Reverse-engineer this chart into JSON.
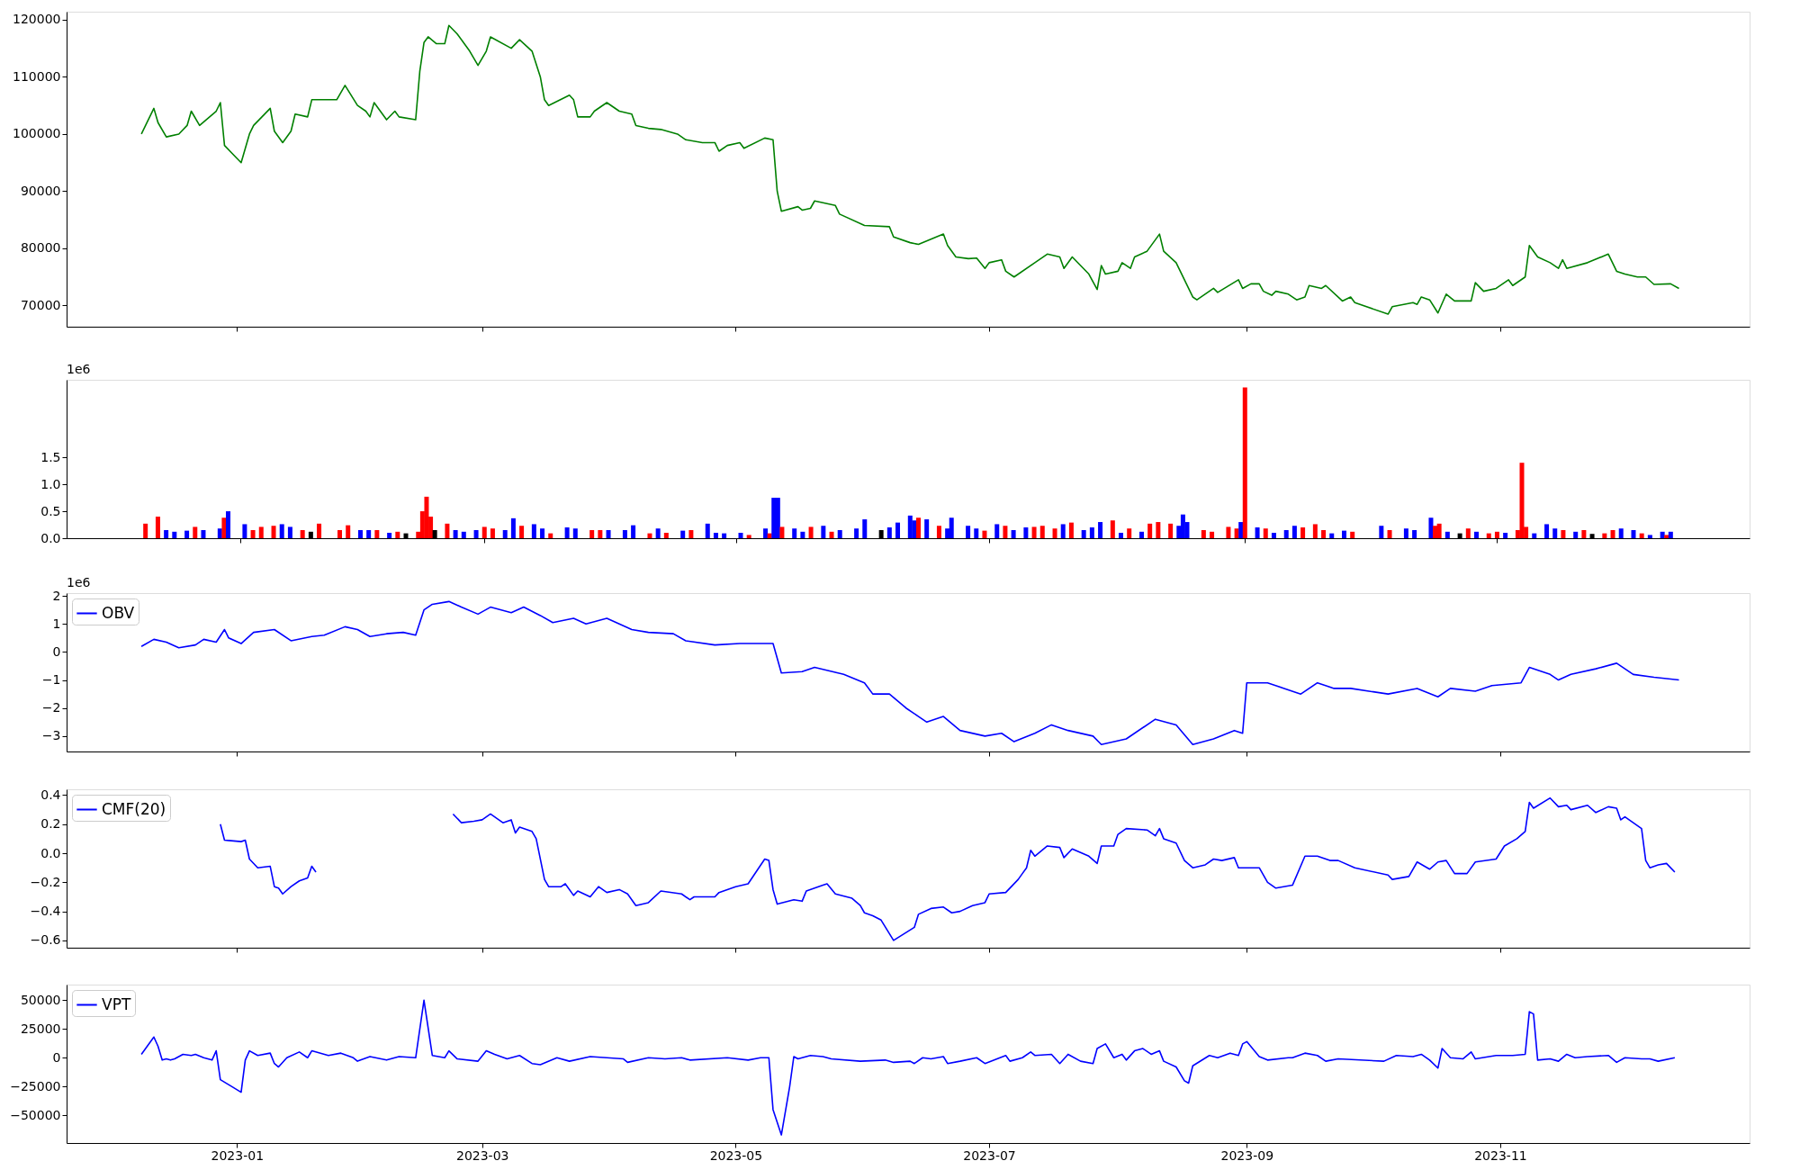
{
  "chart_data": [
    {
      "type": "line",
      "tick_labels": "y",
      "grid": false,
      "xlim": [
        "2022-11-21",
        "2023-12-31"
      ],
      "xticks": [
        "2023-01",
        "2023-03",
        "2023-05",
        "2023-07",
        "2023-09",
        "2023-11"
      ],
      "ylim": [
        66300,
        121400
      ],
      "yticks": [
        70000,
        80000,
        90000,
        100000,
        110000,
        120000
      ],
      "x": [
        "2022-12-09",
        "2022-12-12",
        "2022-12-13",
        "2022-12-15",
        "2022-12-18",
        "2022-12-20",
        "2022-12-21",
        "2022-12-23",
        "2022-12-27",
        "2022-12-28",
        "2022-12-29",
        "2023-01-02",
        "2023-01-04",
        "2023-01-05",
        "2023-01-09",
        "2023-01-10",
        "2023-01-12",
        "2023-01-14",
        "2023-01-15",
        "2023-01-18",
        "2023-01-19",
        "2023-01-25",
        "2023-01-27",
        "2023-01-30",
        "2023-02-01",
        "2023-02-02",
        "2023-02-03",
        "2023-02-06",
        "2023-02-08",
        "2023-02-09",
        "2023-02-13",
        "2023-02-14",
        "2023-02-15",
        "2023-02-16",
        "2023-02-18",
        "2023-02-20",
        "2023-02-21",
        "2023-02-23",
        "2023-02-26",
        "2023-02-28",
        "2023-03-02",
        "2023-03-03",
        "2023-03-08",
        "2023-03-10",
        "2023-03-13",
        "2023-03-15",
        "2023-03-16",
        "2023-03-17",
        "2023-03-22",
        "2023-03-23",
        "2023-03-24",
        "2023-03-27",
        "2023-03-28",
        "2023-03-31",
        "2023-04-03",
        "2023-04-06",
        "2023-04-07",
        "2023-04-10",
        "2023-04-13",
        "2023-04-17",
        "2023-04-19",
        "2023-04-23",
        "2023-04-26",
        "2023-04-27",
        "2023-04-29",
        "2023-05-02",
        "2023-05-03",
        "2023-05-08",
        "2023-05-10",
        "2023-05-11",
        "2023-05-12",
        "2023-05-16",
        "2023-05-17",
        "2023-05-19",
        "2023-05-20",
        "2023-05-25",
        "2023-05-26",
        "2023-06-01",
        "2023-06-07",
        "2023-06-08",
        "2023-06-12",
        "2023-06-14",
        "2023-06-20",
        "2023-06-21",
        "2023-06-23",
        "2023-06-26",
        "2023-06-28",
        "2023-06-30",
        "2023-07-01",
        "2023-07-04",
        "2023-07-05",
        "2023-07-07",
        "2023-07-12",
        "2023-07-15",
        "2023-07-18",
        "2023-07-19",
        "2023-07-21",
        "2023-07-25",
        "2023-07-27",
        "2023-07-28",
        "2023-07-29",
        "2023-08-01",
        "2023-08-02",
        "2023-08-04",
        "2023-08-05",
        "2023-08-08",
        "2023-08-11",
        "2023-08-12",
        "2023-08-15",
        "2023-08-19",
        "2023-08-20",
        "2023-08-24",
        "2023-08-25",
        "2023-08-30",
        "2023-08-31",
        "2023-09-02",
        "2023-09-04",
        "2023-09-05",
        "2023-09-07",
        "2023-09-08",
        "2023-09-11",
        "2023-09-13",
        "2023-09-15",
        "2023-09-16",
        "2023-09-19",
        "2023-09-20",
        "2023-09-24",
        "2023-09-26",
        "2023-09-27",
        "2023-10-05",
        "2023-10-06",
        "2023-10-11",
        "2023-10-12",
        "2023-10-13",
        "2023-10-15",
        "2023-10-17",
        "2023-10-19",
        "2023-10-21",
        "2023-10-25",
        "2023-10-26",
        "2023-10-28",
        "2023-10-31",
        "2023-11-03",
        "2023-11-04",
        "2023-11-07",
        "2023-11-08",
        "2023-11-10",
        "2023-11-13",
        "2023-11-15",
        "2023-11-16",
        "2023-11-17",
        "2023-11-22",
        "2023-11-27",
        "2023-11-29",
        "2023-12-01",
        "2023-12-04",
        "2023-12-06",
        "2023-12-08",
        "2023-12-12",
        "2023-12-14"
      ],
      "series": [
        {
          "color": "#008000",
          "values": [
            100000,
            104500,
            102000,
            99500,
            100000,
            101500,
            104000,
            101500,
            104000,
            105500,
            98000,
            95000,
            100000,
            101500,
            104500,
            100500,
            98500,
            100500,
            103500,
            103000,
            106000,
            106000,
            108500,
            105000,
            104000,
            103000,
            105500,
            102500,
            104000,
            103000,
            102500,
            111000,
            116000,
            117000,
            115800,
            115800,
            119000,
            117500,
            114500,
            112000,
            114500,
            117000,
            115000,
            116500,
            114500,
            110000,
            106000,
            105000,
            106800,
            106000,
            103000,
            103000,
            104000,
            105500,
            104000,
            103500,
            101500,
            101000,
            100800,
            100000,
            99000,
            98500,
            98500,
            97000,
            98000,
            98500,
            97500,
            99300,
            99000,
            90000,
            86500,
            87300,
            86700,
            87000,
            88300,
            87500,
            86000,
            84000,
            83800,
            82000,
            81000,
            80700,
            82500,
            80500,
            78500,
            78200,
            78300,
            76500,
            77500,
            78000,
            76000,
            75000,
            77500,
            79000,
            78500,
            76500,
            78500,
            75500,
            72800,
            77000,
            75500,
            76000,
            77500,
            76500,
            78500,
            79500,
            82500,
            79500,
            77500,
            71500,
            71000,
            73000,
            72300,
            74500,
            73000,
            73800,
            73800,
            72500,
            71800,
            72500,
            72000,
            71000,
            71500,
            73500,
            73000,
            73500,
            70800,
            71500,
            70500,
            68500,
            69800,
            70500,
            70200,
            71500,
            71000,
            68700,
            72000,
            70800,
            70800,
            74000,
            72500,
            73000,
            74500,
            73500,
            75000,
            80500,
            78500,
            77500,
            76500,
            78000,
            76500,
            77500,
            79000,
            76000,
            75500,
            75000,
            75000,
            73700,
            73800,
            73000
          ]
        }
      ]
    },
    {
      "type": "bar",
      "tick_labels": "y",
      "grid": false,
      "annotations": [
        "1e6"
      ],
      "xlim": [
        "2022-11-21",
        "2023-12-31"
      ],
      "xticks": [
        "2023-01",
        "2023-03",
        "2023-05",
        "2023-07",
        "2023-09",
        "2023-11"
      ],
      "ylim": [
        0,
        2.94
      ],
      "yticks": [
        {
          "value": 0,
          "label": "0.0"
        },
        0.5,
        {
          "value": 1,
          "label": "1.0"
        },
        1.5
      ],
      "x": [
        "2022-12-09",
        "2022-12-12",
        "2022-12-14",
        "2022-12-16",
        "2022-12-19",
        "2022-12-21",
        "2022-12-23",
        "2022-12-27",
        "2022-12-28",
        "2022-12-29",
        "2023-01-02",
        "2023-01-04",
        "2023-01-06",
        "2023-01-09",
        "2023-01-11",
        "2023-01-13",
        "2023-01-16",
        "2023-01-18",
        "2023-01-20",
        "2023-01-25",
        "2023-01-27",
        "2023-01-30",
        "2023-02-01",
        "2023-02-03",
        "2023-02-06",
        "2023-02-08",
        "2023-02-10",
        "2023-02-13",
        "2023-02-14",
        "2023-02-15",
        "2023-02-16",
        "2023-02-17",
        "2023-02-20",
        "2023-02-22",
        "2023-02-24",
        "2023-02-27",
        "2023-03-01",
        "2023-03-03",
        "2023-03-06",
        "2023-03-08",
        "2023-03-10",
        "2023-03-13",
        "2023-03-15",
        "2023-03-17",
        "2023-03-21",
        "2023-03-23",
        "2023-03-27",
        "2023-03-29",
        "2023-03-31",
        "2023-04-04",
        "2023-04-06",
        "2023-04-10",
        "2023-04-12",
        "2023-04-14",
        "2023-04-18",
        "2023-04-20",
        "2023-04-24",
        "2023-04-26",
        "2023-04-28",
        "2023-05-02",
        "2023-05-04",
        "2023-05-08",
        "2023-05-09",
        "2023-05-10",
        "2023-05-11",
        "2023-05-12",
        "2023-05-15",
        "2023-05-17",
        "2023-05-19",
        "2023-05-22",
        "2023-05-24",
        "2023-05-26",
        "2023-05-30",
        "2023-06-01",
        "2023-06-05",
        "2023-06-07",
        "2023-06-09",
        "2023-06-12",
        "2023-06-13",
        "2023-06-14",
        "2023-06-16",
        "2023-06-19",
        "2023-06-21",
        "2023-06-22",
        "2023-06-26",
        "2023-06-28",
        "2023-06-30",
        "2023-07-03",
        "2023-07-05",
        "2023-07-07",
        "2023-07-10",
        "2023-07-12",
        "2023-07-14",
        "2023-07-17",
        "2023-07-19",
        "2023-07-21",
        "2023-07-24",
        "2023-07-26",
        "2023-07-28",
        "2023-07-31",
        "2023-08-02",
        "2023-08-04",
        "2023-08-07",
        "2023-08-09",
        "2023-08-11",
        "2023-08-14",
        "2023-08-16",
        "2023-08-17",
        "2023-08-18",
        "2023-08-22",
        "2023-08-24",
        "2023-08-28",
        "2023-08-30",
        "2023-08-31",
        "2023-09-01",
        "2023-09-04",
        "2023-09-06",
        "2023-09-08",
        "2023-09-11",
        "2023-09-13",
        "2023-09-15",
        "2023-09-18",
        "2023-09-20",
        "2023-09-22",
        "2023-09-25",
        "2023-09-27",
        "2023-10-04",
        "2023-10-06",
        "2023-10-10",
        "2023-10-12",
        "2023-10-16",
        "2023-10-17",
        "2023-10-18",
        "2023-10-20",
        "2023-10-23",
        "2023-10-25",
        "2023-10-27",
        "2023-10-30",
        "2023-11-01",
        "2023-11-03",
        "2023-11-06",
        "2023-11-07",
        "2023-11-08",
        "2023-11-10",
        "2023-11-13",
        "2023-11-15",
        "2023-11-17",
        "2023-11-20",
        "2023-11-22",
        "2023-11-24",
        "2023-11-27",
        "2023-11-29",
        "2023-12-01",
        "2023-12-04",
        "2023-12-06",
        "2023-12-08",
        "2023-12-11",
        "2023-12-12",
        "2023-12-13"
      ],
      "values": [
        0.27,
        0.4,
        0.15,
        0.12,
        0.14,
        0.21,
        0.15,
        0.18,
        0.38,
        0.5,
        0.26,
        0.15,
        0.21,
        0.23,
        0.26,
        0.21,
        0.15,
        0.12,
        0.27,
        0.15,
        0.24,
        0.15,
        0.15,
        0.15,
        0.1,
        0.12,
        0.09,
        0.12,
        0.5,
        0.77,
        0.4,
        0.15,
        0.27,
        0.15,
        0.12,
        0.15,
        0.21,
        0.18,
        0.15,
        0.37,
        0.23,
        0.26,
        0.18,
        0.09,
        0.2,
        0.18,
        0.15,
        0.15,
        0.15,
        0.15,
        0.24,
        0.09,
        0.18,
        0.1,
        0.14,
        0.15,
        0.27,
        0.1,
        0.09,
        0.1,
        0.06,
        0.18,
        0.09,
        0.75,
        0.75,
        0.21,
        0.18,
        0.12,
        0.21,
        0.23,
        0.12,
        0.15,
        0.18,
        0.35,
        0.15,
        0.2,
        0.29,
        0.42,
        0.33,
        0.38,
        0.35,
        0.23,
        0.18,
        0.38,
        0.23,
        0.18,
        0.14,
        0.26,
        0.23,
        0.15,
        0.2,
        0.21,
        0.23,
        0.18,
        0.26,
        0.29,
        0.15,
        0.2,
        0.3,
        0.33,
        0.1,
        0.18,
        0.12,
        0.27,
        0.3,
        0.27,
        0.23,
        0.44,
        0.3,
        0.15,
        0.12,
        0.21,
        0.18,
        0.3,
        2.8,
        0.2,
        0.18,
        0.1,
        0.15,
        0.23,
        0.2,
        0.26,
        0.15,
        0.09,
        0.14,
        0.12,
        0.23,
        0.15,
        0.18,
        0.15,
        0.38,
        0.23,
        0.27,
        0.12,
        0.09,
        0.18,
        0.12,
        0.09,
        0.12,
        0.1,
        0.15,
        1.4,
        0.21,
        0.09,
        0.26,
        0.18,
        0.15,
        0.12,
        0.15,
        0.08,
        0.09,
        0.15,
        0.18,
        0.15,
        0.09,
        0.06,
        0.12,
        0.06,
        0.12
      ],
      "colors": [
        "#ff0000",
        "#ff0000",
        "#0000ff",
        "#0000ff",
        "#0000ff",
        "#ff0000",
        "#0000ff",
        "#0000ff",
        "#ff0000",
        "#0000ff",
        "#0000ff",
        "#ff0000",
        "#ff0000",
        "#ff0000",
        "#0000ff",
        "#0000ff",
        "#ff0000",
        "#000000",
        "#ff0000",
        "#ff0000",
        "#ff0000",
        "#0000ff",
        "#0000ff",
        "#ff0000",
        "#0000ff",
        "#ff0000",
        "#000000",
        "#ff0000",
        "#ff0000",
        "#ff0000",
        "#ff0000",
        "#000000",
        "#ff0000",
        "#0000ff",
        "#0000ff",
        "#0000ff",
        "#ff0000",
        "#ff0000",
        "#0000ff",
        "#0000ff",
        "#ff0000",
        "#0000ff",
        "#0000ff",
        "#ff0000",
        "#0000ff",
        "#0000ff",
        "#ff0000",
        "#ff0000",
        "#0000ff",
        "#0000ff",
        "#0000ff",
        "#ff0000",
        "#0000ff",
        "#ff0000",
        "#0000ff",
        "#ff0000",
        "#0000ff",
        "#0000ff",
        "#0000ff",
        "#0000ff",
        "#ff0000",
        "#0000ff",
        "#ff0000",
        "#0000ff",
        "#0000ff",
        "#ff0000",
        "#0000ff",
        "#0000ff",
        "#ff0000",
        "#0000ff",
        "#ff0000",
        "#0000ff",
        "#0000ff",
        "#0000ff",
        "#000000",
        "#0000ff",
        "#0000ff",
        "#0000ff",
        "#0000ff",
        "#ff0000",
        "#0000ff",
        "#ff0000",
        "#0000ff",
        "#0000ff",
        "#0000ff",
        "#0000ff",
        "#ff0000",
        "#0000ff",
        "#ff0000",
        "#0000ff",
        "#0000ff",
        "#ff0000",
        "#ff0000",
        "#ff0000",
        "#0000ff",
        "#ff0000",
        "#0000ff",
        "#0000ff",
        "#0000ff",
        "#ff0000",
        "#0000ff",
        "#ff0000",
        "#0000ff",
        "#ff0000",
        "#ff0000",
        "#ff0000",
        "#0000ff",
        "#0000ff",
        "#0000ff",
        "#ff0000",
        "#ff0000",
        "#ff0000",
        "#ff0000",
        "#0000ff",
        "#ff0000",
        "#0000ff",
        "#ff0000",
        "#0000ff",
        "#0000ff",
        "#0000ff",
        "#ff0000",
        "#ff0000",
        "#ff0000",
        "#0000ff",
        "#0000ff",
        "#ff0000",
        "#0000ff",
        "#ff0000",
        "#0000ff",
        "#0000ff",
        "#0000ff",
        "#ff0000",
        "#ff0000",
        "#0000ff",
        "#000000",
        "#ff0000",
        "#0000ff",
        "#ff0000",
        "#ff0000",
        "#0000ff",
        "#ff0000",
        "#ff0000",
        "#ff0000",
        "#0000ff",
        "#0000ff",
        "#0000ff",
        "#ff0000",
        "#0000ff",
        "#ff0000",
        "#000000",
        "#ff0000",
        "#ff0000",
        "#0000ff",
        "#0000ff",
        "#ff0000",
        "#0000ff",
        "#0000ff",
        "#ff0000",
        "#0000ff"
      ]
    },
    {
      "type": "line",
      "tick_labels": "y",
      "legend": "top left",
      "grid": false,
      "annotations": [
        "1e6"
      ],
      "xlim": [
        "2022-11-21",
        "2023-12-31"
      ],
      "xticks": [
        "2023-01",
        "2023-03",
        "2023-05",
        "2023-07",
        "2023-09",
        "2023-11"
      ],
      "ylim": [
        -3.55,
        2.1
      ],
      "yticks": [
        {
          "value": -3,
          "label": "−3"
        },
        {
          "value": -2,
          "label": "−2"
        },
        {
          "value": -1,
          "label": "−1"
        },
        0,
        1,
        2
      ],
      "x": [
        "2022-12-09",
        "2022-12-12",
        "2022-12-15",
        "2022-12-18",
        "2022-12-22",
        "2022-12-24",
        "2022-12-27",
        "2022-12-29",
        "2022-12-30",
        "2023-01-02",
        "2023-01-05",
        "2023-01-10",
        "2023-01-14",
        "2023-01-19",
        "2023-01-22",
        "2023-01-27",
        "2023-01-30",
        "2023-02-02",
        "2023-02-06",
        "2023-02-10",
        "2023-02-13",
        "2023-02-15",
        "2023-02-17",
        "2023-02-21",
        "2023-02-24",
        "2023-02-28",
        "2023-03-03",
        "2023-03-08",
        "2023-03-11",
        "2023-03-15",
        "2023-03-18",
        "2023-03-23",
        "2023-03-26",
        "2023-03-31",
        "2023-04-06",
        "2023-04-10",
        "2023-04-16",
        "2023-04-19",
        "2023-04-26",
        "2023-05-02",
        "2023-05-10",
        "2023-05-12",
        "2023-05-17",
        "2023-05-20",
        "2023-05-27",
        "2023-06-01",
        "2023-06-03",
        "2023-06-07",
        "2023-06-11",
        "2023-06-14",
        "2023-06-16",
        "2023-06-20",
        "2023-06-24",
        "2023-06-30",
        "2023-07-04",
        "2023-07-07",
        "2023-07-12",
        "2023-07-16",
        "2023-07-20",
        "2023-07-26",
        "2023-07-28",
        "2023-08-03",
        "2023-08-10",
        "2023-08-15",
        "2023-08-19",
        "2023-08-24",
        "2023-08-29",
        "2023-08-31",
        "2023-09-01",
        "2023-09-06",
        "2023-09-10",
        "2023-09-14",
        "2023-09-18",
        "2023-09-22",
        "2023-09-26",
        "2023-10-05",
        "2023-10-12",
        "2023-10-17",
        "2023-10-20",
        "2023-10-26",
        "2023-10-30",
        "2023-11-06",
        "2023-11-08",
        "2023-11-13",
        "2023-11-15",
        "2023-11-18",
        "2023-11-24",
        "2023-11-29",
        "2023-12-03",
        "2023-12-08",
        "2023-12-14"
      ],
      "series": [
        {
          "name": "OBV",
          "color": "#0000ff",
          "values": [
            0.2,
            0.45,
            0.35,
            0.15,
            0.25,
            0.45,
            0.35,
            0.8,
            0.5,
            0.3,
            0.7,
            0.8,
            0.4,
            0.55,
            0.6,
            0.9,
            0.8,
            0.55,
            0.65,
            0.7,
            0.6,
            1.5,
            1.7,
            1.8,
            1.6,
            1.35,
            1.6,
            1.4,
            1.6,
            1.3,
            1.05,
            1.2,
            1.0,
            1.2,
            0.8,
            0.7,
            0.65,
            0.4,
            0.25,
            0.3,
            0.3,
            -0.75,
            -0.7,
            -0.55,
            -0.8,
            -1.1,
            -1.5,
            -1.5,
            -2.0,
            -2.3,
            -2.5,
            -2.3,
            -2.8,
            -3.0,
            -2.9,
            -3.2,
            -2.9,
            -2.6,
            -2.8,
            -3.0,
            -3.3,
            -3.1,
            -2.4,
            -2.6,
            -3.3,
            -3.1,
            -2.8,
            -2.9,
            -1.1,
            -1.1,
            -1.3,
            -1.5,
            -1.1,
            -1.3,
            -1.3,
            -1.5,
            -1.3,
            -1.6,
            -1.3,
            -1.4,
            -1.2,
            -1.1,
            -0.55,
            -0.8,
            -1.0,
            -0.8,
            -0.6,
            -0.4,
            -0.8,
            -0.9,
            -1.0
          ]
        }
      ]
    },
    {
      "type": "line",
      "tick_labels": "y",
      "legend": "top left",
      "grid": false,
      "xlim": [
        "2022-11-21",
        "2023-12-31"
      ],
      "xticks": [
        "2023-01",
        "2023-03",
        "2023-05",
        "2023-07",
        "2023-09",
        "2023-11"
      ],
      "ylim": [
        -0.65,
        0.44
      ],
      "yticks": [
        {
          "value": -0.6,
          "label": "−0.6"
        },
        {
          "value": -0.4,
          "label": "−0.4"
        },
        {
          "value": -0.2,
          "label": "−0.2"
        },
        {
          "value": 0,
          "label": "0.0"
        },
        0.2,
        0.4
      ],
      "x": [
        "2022-12-28",
        "2022-12-29",
        "2023-01-02",
        "2023-01-03",
        "2023-01-04",
        "2023-01-06",
        "2023-01-09",
        "2023-01-10",
        "2023-01-11",
        "2023-01-12",
        "2023-01-14",
        "2023-01-16",
        "2023-01-18",
        "2023-01-19",
        "2023-01-20",
        "2023-02-05",
        "2023-02-22",
        "2023-02-24",
        "2023-02-27",
        "2023-03-01",
        "2023-03-03",
        "2023-03-06",
        "2023-03-08",
        "2023-03-09",
        "2023-03-10",
        "2023-03-13",
        "2023-03-14",
        "2023-03-16",
        "2023-03-17",
        "2023-03-20",
        "2023-03-21",
        "2023-03-23",
        "2023-03-24",
        "2023-03-27",
        "2023-03-29",
        "2023-03-31",
        "2023-04-03",
        "2023-04-05",
        "2023-04-07",
        "2023-04-10",
        "2023-04-13",
        "2023-04-18",
        "2023-04-20",
        "2023-04-21",
        "2023-04-26",
        "2023-04-27",
        "2023-05-01",
        "2023-05-04",
        "2023-05-08",
        "2023-05-09",
        "2023-05-10",
        "2023-05-11",
        "2023-05-15",
        "2023-05-17",
        "2023-05-18",
        "2023-05-22",
        "2023-05-23",
        "2023-05-25",
        "2023-05-29",
        "2023-05-31",
        "2023-06-01",
        "2023-06-03",
        "2023-06-05",
        "2023-06-08",
        "2023-06-13",
        "2023-06-14",
        "2023-06-17",
        "2023-06-20",
        "2023-06-22",
        "2023-06-24",
        "2023-06-27",
        "2023-06-30",
        "2023-07-01",
        "2023-07-05",
        "2023-07-08",
        "2023-07-09",
        "2023-07-10",
        "2023-07-11",
        "2023-07-12",
        "2023-07-15",
        "2023-07-18",
        "2023-07-19",
        "2023-07-21",
        "2023-07-25",
        "2023-07-27",
        "2023-07-28",
        "2023-07-31",
        "2023-08-01",
        "2023-08-03",
        "2023-08-08",
        "2023-08-10",
        "2023-08-11",
        "2023-08-12",
        "2023-08-15",
        "2023-08-17",
        "2023-08-19",
        "2023-08-22",
        "2023-08-24",
        "2023-08-26",
        "2023-08-29",
        "2023-08-30",
        "2023-09-01",
        "2023-09-04",
        "2023-09-06",
        "2023-09-08",
        "2023-09-12",
        "2023-09-15",
        "2023-09-18",
        "2023-09-21",
        "2023-09-23",
        "2023-09-27",
        "2023-10-05",
        "2023-10-06",
        "2023-10-10",
        "2023-10-12",
        "2023-10-15",
        "2023-10-17",
        "2023-10-19",
        "2023-10-21",
        "2023-10-24",
        "2023-10-26",
        "2023-10-31",
        "2023-11-02",
        "2023-11-05",
        "2023-11-07",
        "2023-11-08",
        "2023-11-09",
        "2023-11-13",
        "2023-11-15",
        "2023-11-17",
        "2023-11-18",
        "2023-11-22",
        "2023-11-24",
        "2023-11-27",
        "2023-11-29",
        "2023-11-30",
        "2023-12-01",
        "2023-12-05",
        "2023-12-06",
        "2023-12-07",
        "2023-12-09",
        "2023-12-11",
        "2023-12-13"
      ],
      "series": [
        {
          "name": "CMF(20)",
          "color": "#0000ff",
          "values": [
            0.2,
            0.09,
            0.08,
            0.09,
            -0.04,
            -0.1,
            -0.09,
            -0.23,
            -0.24,
            -0.28,
            -0.23,
            -0.19,
            -0.17,
            -0.09,
            -0.13,
            null,
            0.27,
            0.21,
            0.22,
            0.23,
            0.27,
            0.21,
            0.23,
            0.14,
            0.18,
            0.15,
            0.1,
            -0.18,
            -0.23,
            -0.23,
            -0.21,
            -0.29,
            -0.26,
            -0.3,
            -0.23,
            -0.27,
            -0.25,
            -0.28,
            -0.36,
            -0.34,
            -0.26,
            -0.28,
            -0.32,
            -0.3,
            -0.3,
            -0.27,
            -0.23,
            -0.21,
            -0.04,
            -0.05,
            -0.25,
            -0.35,
            -0.32,
            -0.33,
            -0.26,
            -0.22,
            -0.21,
            -0.28,
            -0.31,
            -0.36,
            -0.41,
            -0.43,
            -0.46,
            -0.6,
            -0.51,
            -0.42,
            -0.38,
            -0.37,
            -0.41,
            -0.4,
            -0.36,
            -0.34,
            -0.28,
            -0.27,
            -0.18,
            -0.14,
            -0.1,
            0.02,
            -0.02,
            0.05,
            0.04,
            -0.03,
            0.03,
            -0.02,
            -0.07,
            0.05,
            0.05,
            0.13,
            0.17,
            0.16,
            0.12,
            0.17,
            0.1,
            0.07,
            -0.05,
            -0.1,
            -0.08,
            -0.04,
            -0.05,
            -0.03,
            -0.1,
            -0.1,
            -0.1,
            -0.2,
            -0.24,
            -0.22,
            -0.02,
            -0.02,
            -0.05,
            -0.05,
            -0.1,
            -0.15,
            -0.18,
            -0.16,
            -0.06,
            -0.11,
            -0.06,
            -0.05,
            -0.14,
            -0.14,
            -0.06,
            -0.04,
            0.05,
            0.1,
            0.15,
            0.35,
            0.31,
            0.38,
            0.32,
            0.33,
            0.3,
            0.33,
            0.28,
            0.32,
            0.31,
            0.23,
            0.25,
            0.17,
            -0.05,
            -0.1,
            -0.08,
            -0.07,
            -0.13
          ]
        }
      ]
    },
    {
      "type": "line",
      "legend": "top left",
      "grid": false,
      "xlim": [
        "2022-11-21",
        "2023-12-31"
      ],
      "xticks": [
        "2023-01",
        "2023-03",
        "2023-05",
        "2023-07",
        "2023-09",
        "2023-11"
      ],
      "ylim": [
        -74000,
        63500
      ],
      "yticks": [
        {
          "value": -50000,
          "label": "−50000"
        },
        {
          "value": -25000,
          "label": "−25000"
        },
        0,
        25000,
        50000
      ],
      "x": [
        "2022-12-09",
        "2022-12-12",
        "2022-12-13",
        "2022-12-14",
        "2022-12-15",
        "2022-12-16",
        "2022-12-17",
        "2022-12-19",
        "2022-12-21",
        "2022-12-22",
        "2022-12-24",
        "2022-12-26",
        "2022-12-27",
        "2022-12-28",
        "2023-01-02",
        "2023-01-03",
        "2023-01-04",
        "2023-01-06",
        "2023-01-09",
        "2023-01-10",
        "2023-01-11",
        "2023-01-13",
        "2023-01-16",
        "2023-01-18",
        "2023-01-19",
        "2023-01-23",
        "2023-01-26",
        "2023-01-29",
        "2023-01-30",
        "2023-02-02",
        "2023-02-06",
        "2023-02-09",
        "2023-02-13",
        "2023-02-15",
        "2023-02-17",
        "2023-02-20",
        "2023-02-21",
        "2023-02-23",
        "2023-02-28",
        "2023-03-02",
        "2023-03-04",
        "2023-03-07",
        "2023-03-10",
        "2023-03-13",
        "2023-03-15",
        "2023-03-19",
        "2023-03-22",
        "2023-03-27",
        "2023-03-31",
        "2023-04-04",
        "2023-04-05",
        "2023-04-10",
        "2023-04-14",
        "2023-04-18",
        "2023-04-20",
        "2023-04-29",
        "2023-05-04",
        "2023-05-07",
        "2023-05-09",
        "2023-05-10",
        "2023-05-12",
        "2023-05-14",
        "2023-05-15",
        "2023-05-16",
        "2023-05-19",
        "2023-05-22",
        "2023-05-24",
        "2023-05-31",
        "2023-06-06",
        "2023-06-08",
        "2023-06-12",
        "2023-06-13",
        "2023-06-15",
        "2023-06-17",
        "2023-06-20",
        "2023-06-21",
        "2023-06-24",
        "2023-06-28",
        "2023-06-30",
        "2023-07-05",
        "2023-07-06",
        "2023-07-09",
        "2023-07-11",
        "2023-07-12",
        "2023-07-16",
        "2023-07-18",
        "2023-07-20",
        "2023-07-23",
        "2023-07-26",
        "2023-07-27",
        "2023-07-29",
        "2023-07-31",
        "2023-08-02",
        "2023-08-03",
        "2023-08-05",
        "2023-08-07",
        "2023-08-09",
        "2023-08-11",
        "2023-08-12",
        "2023-08-15",
        "2023-08-17",
        "2023-08-18",
        "2023-08-19",
        "2023-08-23",
        "2023-08-25",
        "2023-08-28",
        "2023-08-30",
        "2023-08-31",
        "2023-09-01",
        "2023-09-04",
        "2023-09-06",
        "2023-09-11",
        "2023-09-12",
        "2023-09-15",
        "2023-09-18",
        "2023-09-20",
        "2023-09-23",
        "2023-10-04",
        "2023-10-07",
        "2023-10-11",
        "2023-10-13",
        "2023-10-15",
        "2023-10-17",
        "2023-10-18",
        "2023-10-20",
        "2023-10-23",
        "2023-10-25",
        "2023-10-26",
        "2023-10-31",
        "2023-11-04",
        "2023-11-07",
        "2023-11-08",
        "2023-11-09",
        "2023-11-10",
        "2023-11-13",
        "2023-11-15",
        "2023-11-17",
        "2023-11-19",
        "2023-11-22",
        "2023-11-27",
        "2023-11-29",
        "2023-12-01",
        "2023-12-05",
        "2023-12-07",
        "2023-12-09",
        "2023-12-13"
      ],
      "series": [
        {
          "name": "VPT",
          "color": "#0000ff",
          "values": [
            3000,
            18000,
            10000,
            -2000,
            -1000,
            -2000,
            -1000,
            3000,
            2000,
            3000,
            0,
            -2000,
            6000,
            -19000,
            -30000,
            -2000,
            6000,
            2000,
            4000,
            -5000,
            -8000,
            0,
            5000,
            0,
            6000,
            2000,
            4000,
            0,
            -3000,
            1000,
            -2000,
            1000,
            0,
            50000,
            2000,
            0,
            6000,
            -1000,
            -3000,
            6000,
            3000,
            -1000,
            2000,
            -5000,
            -6000,
            0,
            -3000,
            1000,
            0,
            -1000,
            -4000,
            0,
            -1000,
            0,
            -2000,
            0,
            -2000,
            0,
            0,
            -45000,
            -67000,
            -25000,
            1000,
            -1000,
            2000,
            1000,
            -1000,
            -3000,
            -2000,
            -4000,
            -3000,
            -5000,
            0,
            -1000,
            1000,
            -5000,
            -3000,
            0,
            -5000,
            2000,
            -3000,
            0,
            5000,
            2000,
            3000,
            -5000,
            3000,
            -3000,
            -5000,
            8000,
            12000,
            0,
            3000,
            -2000,
            6000,
            8000,
            3000,
            6000,
            -3000,
            -8000,
            -20000,
            -22000,
            -7000,
            2000,
            0,
            4000,
            2000,
            12000,
            14000,
            1000,
            -2000,
            0,
            0,
            4000,
            2000,
            -3000,
            -1000,
            -3000,
            2000,
            1000,
            3000,
            -2000,
            -9000,
            8000,
            0,
            -1000,
            5000,
            -1000,
            2000,
            2000,
            3000,
            40000,
            38000,
            -2000,
            -1000,
            -3000,
            3000,
            0,
            1000,
            2000,
            -4000,
            0,
            -1000,
            -1000,
            -3000,
            0
          ]
        }
      ]
    }
  ]
}
